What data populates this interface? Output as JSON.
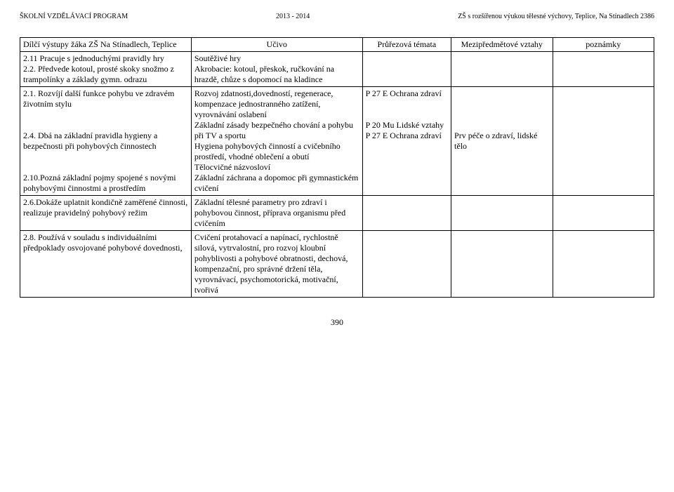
{
  "header": {
    "left": "ŠKOLNÍ VZDĚLÁVACÍ PROGRAM",
    "center": "2013 - 2014",
    "right": "ZŠ s rozšířenou výukou tělesné výchovy, Teplice, Na Stínadlech 2386"
  },
  "columns": {
    "c1": "Dílčí výstupy žáka ZŠ Na Stínadlech, Teplice",
    "c2": "Učivo",
    "c3": "Průřezová témata",
    "c4": "Mezipředmětové vztahy",
    "c5": "poznámky"
  },
  "rows": [
    {
      "vystupy": "2.11 Pracuje s jednoduchými pravidly hry\n2.2. Předvede kotoul, prosté skoky snožmo z trampolínky a základy gymn. odrazu",
      "ucivo": "Soutěživé hry\nAkrobacie: kotoul, přeskok, ručkování na hrazdě, chůze s dopomocí na kladince",
      "prurez": "",
      "mezi": "",
      "pozn": ""
    },
    {
      "vystupy": "2.1. Rozvíjí další funkce pohybu ve zdravém  životním stylu\n\n\n2.4. Dbá na základní pravidla hygieny a bezpečnosti při pohybových činnostech\n\n\n2.10.Pozná základní pojmy  spojené s novými pohybovými činnostmi a prostředím",
      "ucivo": "Rozvoj zdatnosti,dovedností, regenerace, kompenzace jednostranného zatížení, vyrovnávání oslabení\nZákladní zásady bezpečného chování a pohybu při TV a sportu\nHygiena pohybových činností a cvičebního prostředí, vhodné oblečení a obutí\nTělocvičné názvosloví\nZákladní záchrana a dopomoc při gymnastickém cvičení",
      "prurez": "P 27 E Ochrana zdraví\n\n\nP 20 Mu  Lidské vztahy\nP 27 E Ochrana zdraví",
      "mezi": "\n\n\n\nPrv péče o zdraví, lidské tělo",
      "pozn": ""
    },
    {
      "vystupy": "2.6.Dokáže uplatnit kondičně zaměřené činnosti, realizuje pravidelný pohybový režim",
      "ucivo": "Základní tělesné parametry pro zdraví i pohybovou činnost, příprava organismu před cvičením",
      "prurez": "",
      "mezi": "",
      "pozn": ""
    },
    {
      "vystupy": "2.8. Používá v souladu s individuálními předpoklady osvojované pohybové dovednosti,",
      "ucivo": "Cvičení protahovací a napínací, rychlostně silová, vytrvalostní, pro rozvoj kloubní pohyblivosti a pohybové obratnosti, dechová, kompenzační, pro správné držení těla, vyrovnávací, psychomotorická, motivační, tvořivá",
      "prurez": "",
      "mezi": "",
      "pozn": ""
    }
  ],
  "footer": {
    "page": "390"
  }
}
